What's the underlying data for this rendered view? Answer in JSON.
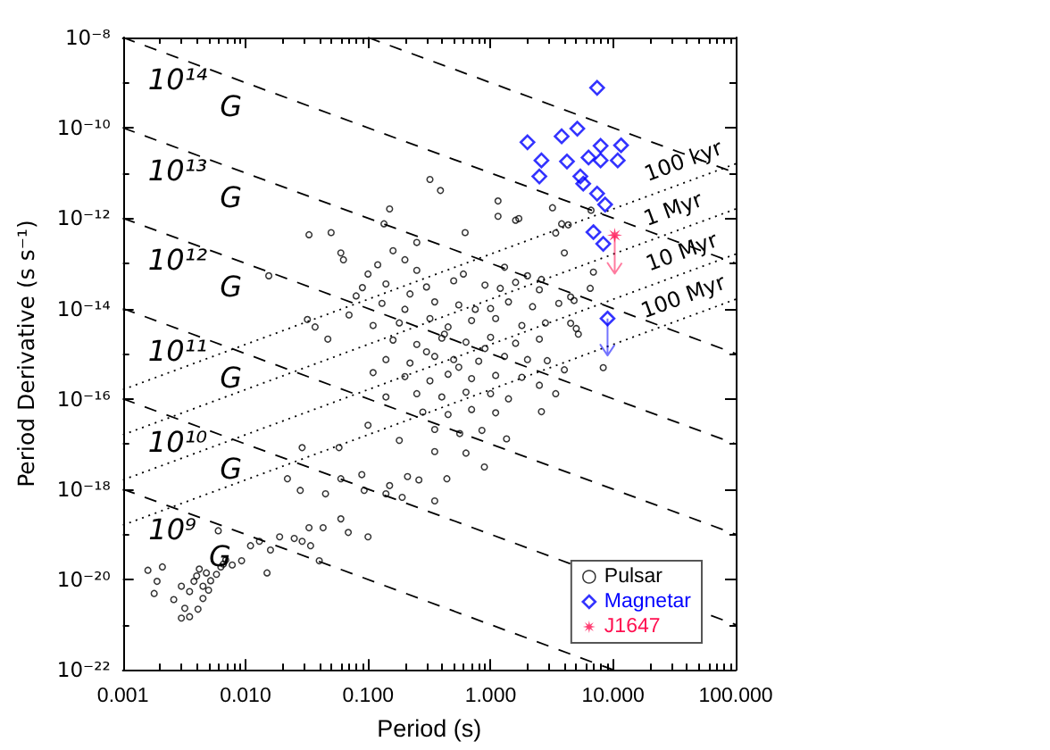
{
  "chart_data": {
    "type": "scatter",
    "xlabel": "Period (s)",
    "ylabel": "Period Derivative (s s⁻¹)",
    "log": "xy",
    "legend": "bottom right",
    "xlim": [
      0.001,
      100
    ],
    "ylim": [
      1e-22,
      1e-08
    ],
    "xticks": [
      0.001,
      {
        "value": 0.002,
        "label": null
      },
      {
        "value": 0.003,
        "label": null
      },
      {
        "value": 0.004,
        "label": null
      },
      {
        "value": 0.005,
        "label": null
      },
      {
        "value": 0.006,
        "label": null
      },
      {
        "value": 0.007,
        "label": null
      },
      {
        "value": 0.008,
        "label": null
      },
      {
        "value": 0.009,
        "label": null
      },
      {
        "value": 0.01,
        "label": "0.010"
      },
      {
        "value": 0.02,
        "label": null
      },
      {
        "value": 0.03,
        "label": null
      },
      {
        "value": 0.04,
        "label": null
      },
      {
        "value": 0.05,
        "label": null
      },
      {
        "value": 0.06,
        "label": null
      },
      {
        "value": 0.07,
        "label": null
      },
      {
        "value": 0.08,
        "label": null
      },
      {
        "value": 0.09,
        "label": null
      },
      {
        "value": 0.1,
        "label": "0.100"
      },
      {
        "value": 0.2,
        "label": null
      },
      {
        "value": 0.3,
        "label": null
      },
      {
        "value": 0.4,
        "label": null
      },
      {
        "value": 0.5,
        "label": null
      },
      {
        "value": 0.6,
        "label": null
      },
      {
        "value": 0.7,
        "label": null
      },
      {
        "value": 0.8,
        "label": null
      },
      {
        "value": 0.9,
        "label": null
      },
      {
        "value": 1,
        "label": "1.000"
      },
      {
        "value": 2,
        "label": null
      },
      {
        "value": 3,
        "label": null
      },
      {
        "value": 4,
        "label": null
      },
      {
        "value": 5,
        "label": null
      },
      {
        "value": 6,
        "label": null
      },
      {
        "value": 7,
        "label": null
      },
      {
        "value": 8,
        "label": null
      },
      {
        "value": 9,
        "label": null
      },
      {
        "value": 10,
        "label": "10.000"
      },
      {
        "value": 20,
        "label": null
      },
      {
        "value": 30,
        "label": null
      },
      {
        "value": 40,
        "label": null
      },
      {
        "value": 50,
        "label": null
      },
      {
        "value": 60,
        "label": null
      },
      {
        "value": 70,
        "label": null
      },
      {
        "value": 80,
        "label": null
      },
      {
        "value": 90,
        "label": null
      },
      {
        "value": 100,
        "label": "100.000"
      }
    ],
    "yticks": [
      {
        "value": 1e-22,
        "label": "10⁻²²"
      },
      {
        "value": 1e-21,
        "label": null
      },
      {
        "value": 1e-20,
        "label": "10⁻²⁰"
      },
      {
        "value": 1e-19,
        "label": null
      },
      {
        "value": 1e-18,
        "label": "10⁻¹⁸"
      },
      {
        "value": 1e-17,
        "label": null
      },
      {
        "value": 1e-16,
        "label": "10⁻¹⁶"
      },
      {
        "value": 1e-15,
        "label": null
      },
      {
        "value": 1e-14,
        "label": "10⁻¹⁴"
      },
      {
        "value": 1e-13,
        "label": null
      },
      {
        "value": 1e-12,
        "label": "10⁻¹²"
      },
      {
        "value": 1e-11,
        "label": null
      },
      {
        "value": 1e-10,
        "label": "10⁻¹⁰"
      },
      {
        "value": 1e-09,
        "label": null
      },
      {
        "value": 1e-08,
        "label": "10⁻⁸"
      }
    ],
    "annotations": [
      {
        "text": "10¹⁴ G",
        "x": 0.0039,
        "y": 2.6e-09
      },
      {
        "text": "10¹³ G",
        "x": 0.0039,
        "y": 2.6e-11
      },
      {
        "text": "10¹² G",
        "x": 0.0039,
        "y": 2.6e-13
      },
      {
        "text": "10¹¹ G",
        "x": 0.0039,
        "y": 2.6e-15
      },
      {
        "text": "10¹⁰ G",
        "x": 0.0039,
        "y": 2.6e-17
      },
      {
        "text": "10⁹ G",
        "x": 0.0035,
        "y": 2.9e-19
      },
      {
        "text": "100 kyr",
        "x": 43,
        "y": 6.9e-12
      },
      {
        "text": "1 Myr",
        "x": 35,
        "y": 5.6e-13
      },
      {
        "text": "10 Myr",
        "x": 41,
        "y": 6.6e-14
      },
      {
        "text": "100 Myr",
        "x": 43,
        "y": 6.9e-15
      }
    ],
    "series": [
      {
        "name": "Pulsar",
        "marker": "circle",
        "color": "#000000",
        "x": [
          0.25,
          0.6,
          1.3,
          2.0,
          0.14,
          0.3,
          0.5,
          0.9,
          1.6,
          2.5,
          0.13,
          0.2,
          0.35,
          0.55,
          1.0,
          1.4,
          2.2,
          0.11,
          0.18,
          0.32,
          0.45,
          0.7,
          1.1,
          1.8,
          2.8,
          0.16,
          0.25,
          0.4,
          0.63,
          1.0,
          1.6,
          2.5,
          0.14,
          0.22,
          0.35,
          0.5,
          0.8,
          1.3,
          2.0,
          0.2,
          0.32,
          0.45,
          0.7,
          1.1,
          1.8,
          0.25,
          0.4,
          0.63,
          1.0,
          1.4,
          0.28,
          0.45,
          0.7,
          1.1,
          0.35,
          0.56,
          0.85,
          0.42,
          0.75,
          0.3,
          0.9,
          0.55,
          0.22,
          1.2,
          0.32,
          0.39,
          0.15,
          0.033,
          0.05,
          0.135,
          1.15,
          1.15,
          1.6,
          0.62,
          0.0155,
          0.06,
          0.047,
          0.037,
          0.032,
          0.11,
          0.14,
          0.063,
          0.1,
          0.16,
          0.25,
          0.2,
          0.08,
          0.12,
          0.09,
          0.07,
          3.2,
          3.8,
          3.4,
          1.7,
          6.6,
          6.9,
          6.5,
          5.0,
          4.5,
          2.6,
          4.0,
          4.8,
          4.3,
          8.3,
          2.6,
          3.4,
          2.5,
          4.0,
          2.9,
          4.5,
          5.2,
          3.6,
          1.35,
          0.029,
          0.022,
          0.028,
          0.045,
          0.058,
          0.1,
          0.06,
          0.093,
          0.14,
          0.19,
          0.35,
          0.44,
          0.26,
          0.89,
          0.35,
          0.63,
          0.18,
          0.089,
          0.15,
          0.21,
          0.1,
          0.06,
          0.069,
          0.043,
          0.033,
          0.029,
          0.034,
          0.04,
          0.025,
          0.019,
          0.016,
          0.015,
          0.013,
          0.011,
          0.0093,
          0.006,
          0.0078,
          0.0016,
          0.0018,
          0.0021,
          0.0019,
          0.0026,
          0.003,
          0.0035,
          0.0032,
          0.0038,
          0.0035,
          0.0045,
          0.0052,
          0.0048,
          0.0045,
          0.0058,
          0.0042,
          0.0041,
          0.003,
          0.0066,
          0.0069,
          0.0063,
          0.004,
          0.005
        ],
        "values": [
          7e-14,
          5.8e-14,
          8.2e-14,
          5.3e-14,
          3.5e-14,
          3e-14,
          4.1e-14,
          3.3e-14,
          3.8e-14,
          2.6e-14,
          1.3e-14,
          9.6e-15,
          1.4e-14,
          1.2e-14,
          1e-14,
          1.4e-14,
          1.1e-14,
          4.2e-15,
          4.8e-15,
          6e-15,
          3.9e-15,
          5.4e-15,
          6e-15,
          4.2e-15,
          4.8e-15,
          2e-15,
          1.6e-15,
          2.2e-15,
          1.8e-15,
          2.3e-15,
          1.7e-15,
          2.1e-15,
          7.4e-16,
          6.2e-16,
          8.7e-16,
          7.4e-16,
          6.8e-16,
          8.7e-16,
          7.4e-16,
          3.1e-16,
          2.5e-16,
          3.5e-16,
          2.8e-16,
          3.3e-16,
          3e-16,
          1.3e-16,
          1.1e-16,
          1.4e-16,
          1.3e-16,
          1e-16,
          5.1e-17,
          4.5e-17,
          5.8e-17,
          4.9e-17,
          2.1e-17,
          1.7e-17,
          2e-17,
          2.7e-15,
          9.6e-15,
          1.1e-15,
          1.3e-15,
          5e-16,
          2.1e-14,
          2.8e-14,
          7.2e-12,
          4.1e-12,
          1.6e-12,
          4.3e-13,
          4.8e-13,
          7.5e-13,
          2.4e-12,
          1.1e-12,
          9e-13,
          4.8e-13,
          5.3e-14,
          1.7e-13,
          2.1e-15,
          3.9e-15,
          5.7e-15,
          3.8e-16,
          1.1e-16,
          1.2e-13,
          5.8e-14,
          1.9e-13,
          2.9e-13,
          1.2e-13,
          1.9e-14,
          9.3e-14,
          2.9e-14,
          7.2e-15,
          1.7e-12,
          7.5e-13,
          4.7e-13,
          9.8e-13,
          1.5e-12,
          6.4e-14,
          2.8e-14,
          3.6e-15,
          1.8e-14,
          4.4e-14,
          1.7e-13,
          1.5e-14,
          7.1e-13,
          4.9e-16,
          5.2e-17,
          1.3e-16,
          2e-16,
          4.4e-16,
          7e-16,
          4.7e-15,
          2.7e-15,
          1.3e-14,
          1.3e-17,
          8.3e-18,
          1.7e-18,
          9.4e-19,
          7.9e-19,
          8.3e-18,
          2.6e-17,
          1.7e-18,
          9.4e-19,
          7.9e-19,
          6.6e-19,
          5.5e-19,
          1.7e-18,
          1.6e-18,
          3.1e-18,
          6.8e-18,
          6.3e-18,
          1.2e-17,
          2.1e-18,
          1.2e-18,
          1.9e-18,
          8.8e-20,
          2.2e-19,
          1.1e-19,
          1.4e-19,
          1.4e-19,
          7e-20,
          5.6e-20,
          2.6e-20,
          8.1e-20,
          8.8e-20,
          4.5e-20,
          1.4e-20,
          7e-20,
          5.6e-20,
          2.6e-20,
          1.2e-19,
          2.1e-20,
          1.6e-20,
          4.9e-21,
          1.9e-20,
          9.1e-21,
          3.6e-21,
          1.4e-21,
          1.5e-21,
          2.3e-21,
          9.1e-21,
          5.4e-21,
          3.8e-21,
          9.4e-21,
          1.4e-20,
          7.1e-21,
          1.3e-20,
          1.7e-20,
          2.2e-21,
          7.1e-21,
          2.2e-20,
          2.7e-20,
          1.9e-20,
          1.2e-20,
          5.8e-21
        ]
      },
      {
        "name": "Magnetar",
        "marker": "diamond",
        "color": "#0000ff",
        "x": [
          7.4,
          2.0,
          3.8,
          5.1,
          2.6,
          4.2,
          2.5,
          6.3,
          7.9,
          11.6,
          7.9,
          10.9,
          5.4,
          5.7,
          7.4,
          8.6,
          6.9,
          8.3,
          9.0
        ],
        "values": [
          7.7e-10,
          4.8e-11,
          6.5e-11,
          9.6e-11,
          1.9e-11,
          1.8e-11,
          8.4e-12,
          2.2e-11,
          4e-11,
          4.1e-11,
          1.9e-11,
          1.9e-11,
          8.4e-12,
          5.8e-12,
          3.5e-12,
          2e-12,
          4.9e-13,
          2.7e-13,
          6e-15
        ],
        "errors": [
          null,
          null,
          null,
          null,
          null,
          null,
          null,
          null,
          null,
          null,
          null,
          null,
          null,
          null,
          null,
          null,
          null,
          null,
          [
            9.1e-16,
            6e-15
          ]
        ]
      },
      {
        "name": "J1647",
        "marker": "star",
        "color": "#ff0f50",
        "x": [
          10.3
        ],
        "values": [
          4.2e-13
        ],
        "errors": [
          [
            5.9e-14,
            4.2e-13
          ]
        ]
      },
      {
        "type": "line",
        "line_style": "dashed",
        "marker": "none",
        "color": "#000000",
        "x": [
          0.1,
          100
        ],
        "values": [
          1e-08,
          1e-11
        ]
      },
      {
        "type": "line",
        "line_style": "dashed",
        "marker": "none",
        "color": "#000000",
        "x": [
          0.001,
          100
        ],
        "values": [
          1e-08,
          1e-13
        ]
      },
      {
        "type": "line",
        "line_style": "dashed",
        "marker": "none",
        "color": "#000000",
        "x": [
          0.001,
          100
        ],
        "values": [
          1e-10,
          1e-15
        ]
      },
      {
        "type": "line",
        "line_style": "dashed",
        "marker": "none",
        "color": "#000000",
        "x": [
          0.001,
          100
        ],
        "values": [
          1e-12,
          1e-17
        ]
      },
      {
        "type": "line",
        "line_style": "dashed",
        "marker": "none",
        "color": "#000000",
        "x": [
          0.001,
          100
        ],
        "values": [
          1e-14,
          1e-19
        ]
      },
      {
        "type": "line",
        "line_style": "dashed",
        "marker": "none",
        "color": "#000000",
        "x": [
          0.001,
          100
        ],
        "values": [
          1e-16,
          1e-21
        ]
      },
      {
        "type": "line",
        "line_style": "dashed",
        "marker": "none",
        "color": "#000000",
        "x": [
          0.001,
          10
        ],
        "values": [
          1e-18,
          1e-22
        ]
      },
      {
        "type": "line",
        "line_style": "dotted",
        "marker": "none",
        "color": "#000000",
        "x": [
          0.001,
          100
        ],
        "values": [
          1.6e-16,
          1.6e-11
        ]
      },
      {
        "type": "line",
        "line_style": "dotted",
        "marker": "none",
        "color": "#000000",
        "x": [
          0.001,
          100
        ],
        "values": [
          1.6e-17,
          1.6e-12
        ]
      },
      {
        "type": "line",
        "line_style": "dotted",
        "marker": "none",
        "color": "#000000",
        "x": [
          0.001,
          100
        ],
        "values": [
          1.6e-18,
          1.6e-13
        ]
      },
      {
        "type": "line",
        "line_style": "dotted",
        "marker": "none",
        "color": "#000000",
        "x": [
          0.001,
          100
        ],
        "values": [
          1.6e-19,
          1.6e-14
        ]
      }
    ]
  }
}
